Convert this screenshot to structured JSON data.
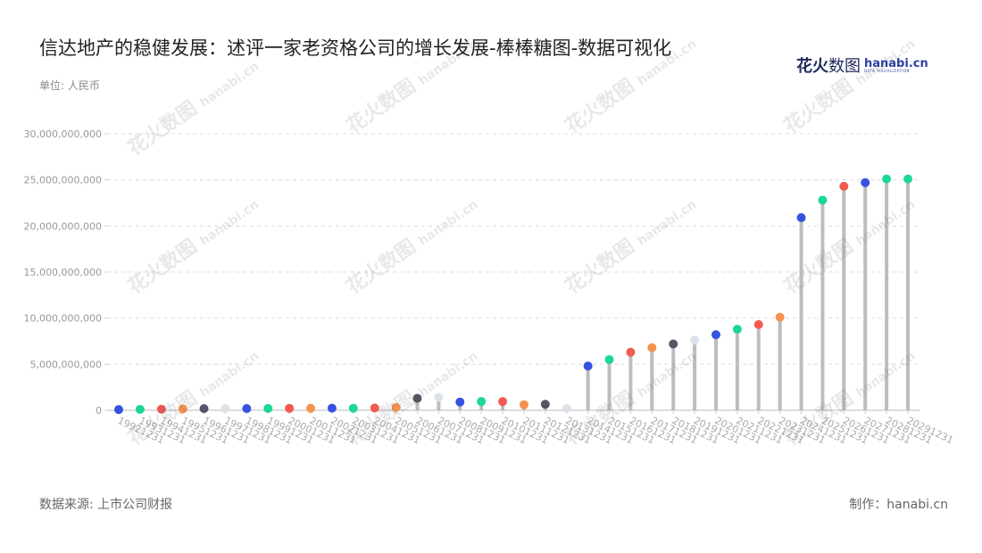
{
  "title": "信达地产的稳健发展：述评一家老资格公司的增长发展-棒棒糖图-数据可视化",
  "unit": "单位: 人民币",
  "source": "数据来源: 上市公司财报",
  "maker": "制作：hanabi.cn",
  "logo": {
    "cn_bold": "花火",
    "cn_light": "数图",
    "en": "hanabi.cn",
    "en_sub": "DATA VISUALIZATION"
  },
  "palette": [
    "#3552e0",
    "#1dd69a",
    "#f25a52",
    "#f5924e",
    "#555566",
    "#dde1ea"
  ],
  "chart_data": {
    "type": "lollipop",
    "ylim": [
      0,
      30000000000
    ],
    "yticks": [
      0,
      5000000000,
      10000000000,
      15000000000,
      20000000000,
      25000000000,
      30000000000
    ],
    "ytick_labels": [
      "0",
      "5,000,000,000",
      "10,000,000,000",
      "15,000,000,000",
      "20,000,000,000",
      "25,000,000,000",
      "30,000,000,000"
    ],
    "grid": true,
    "categories": [
      "19921231",
      "19931231",
      "19941231",
      "19951231",
      "19961231",
      "19971231",
      "19981231",
      "19991231",
      "20001231",
      "20011231",
      "20021231",
      "20031231",
      "20041231",
      "20051231",
      "20061231",
      "20071231",
      "20081231",
      "20091231",
      "20101231",
      "20111231",
      "20121231",
      "20131231",
      "20141231",
      "20151231",
      "20161231",
      "20171231",
      "20181231",
      "20191231",
      "20201231",
      "20211231",
      "20221231",
      "20231231",
      "20241231",
      "20251231",
      "20261231",
      "20271231",
      "20281231",
      "20291231"
    ],
    "xtick_labels": [
      "19921231",
      "19931231",
      "19941231",
      "19951231",
      "19961231",
      "19971231",
      "19981231",
      "19991231",
      "20001231",
      "20011231",
      "20021231",
      "20031231",
      "20041231",
      "20051231",
      "20061231",
      "20071231",
      "20081231",
      "20091231",
      "20101231",
      "20111231",
      "20121231",
      "20131231",
      "20141231",
      "20151231",
      "20161231",
      "20171231",
      "20181231",
      "20191231",
      "20201231",
      "20211231",
      "20221231",
      "20231231",
      "20241231",
      "20251231",
      "20261231",
      "20271231",
      "20281231",
      "20291231"
    ],
    "values": [
      80000000,
      100000000,
      120000000,
      150000000,
      180000000,
      170000000,
      190000000,
      200000000,
      210000000,
      220000000,
      230000000,
      220000000,
      250000000,
      300000000,
      1300000000,
      1400000000,
      900000000,
      950000000,
      950000000,
      600000000,
      650000000,
      200000000,
      4800000000,
      5500000000,
      6300000000,
      6800000000,
      7200000000,
      7600000000,
      8200000000,
      8800000000,
      9300000000,
      10100000000,
      20900000000,
      22800000000,
      24300000000,
      24700000000,
      25100000000,
      25100000000
    ],
    "dot_color_index": [
      0,
      1,
      2,
      3,
      4,
      5,
      0,
      1,
      2,
      3,
      0,
      1,
      2,
      3,
      4,
      5,
      0,
      1,
      2,
      3,
      4,
      5,
      0,
      1,
      2,
      3,
      4,
      5,
      0,
      1,
      2,
      3,
      0,
      1,
      2,
      0,
      1,
      1
    ]
  }
}
